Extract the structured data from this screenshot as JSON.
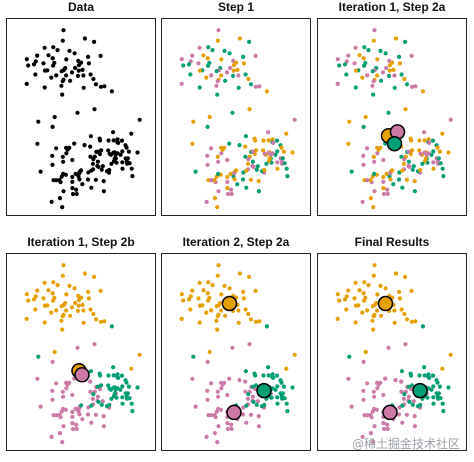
{
  "panels": [
    {
      "title": "Data",
      "mode": "data"
    },
    {
      "title": "Step 1",
      "mode": "random"
    },
    {
      "title": "Iteration 1, Step 2a",
      "mode": "random",
      "centroids": [
        [
          0.47,
          0.59
        ],
        [
          0.53,
          0.57
        ],
        [
          0.51,
          0.63
        ]
      ]
    },
    {
      "title": "Iteration 1, Step 2b",
      "mode": "clustered",
      "centroids": [
        [
          0.48,
          0.59
        ],
        [
          0.5,
          0.61
        ],
        null
      ]
    },
    {
      "title": "Iteration 2, Step 2a",
      "mode": "clustered",
      "centroids": [
        [
          0.45,
          0.25
        ],
        [
          0.48,
          0.8
        ],
        [
          0.68,
          0.69
        ]
      ]
    },
    {
      "title": "Final Results",
      "mode": "clustered",
      "centroids": [
        [
          0.45,
          0.25
        ],
        [
          0.48,
          0.8
        ],
        [
          0.68,
          0.69
        ]
      ]
    }
  ],
  "colors": {
    "data": "#000000",
    "cluster_orange": "#e69f00",
    "cluster_pink": "#cc79a7",
    "cluster_green": "#009e73"
  },
  "watermark": "@稀土掘金技术社区"
}
